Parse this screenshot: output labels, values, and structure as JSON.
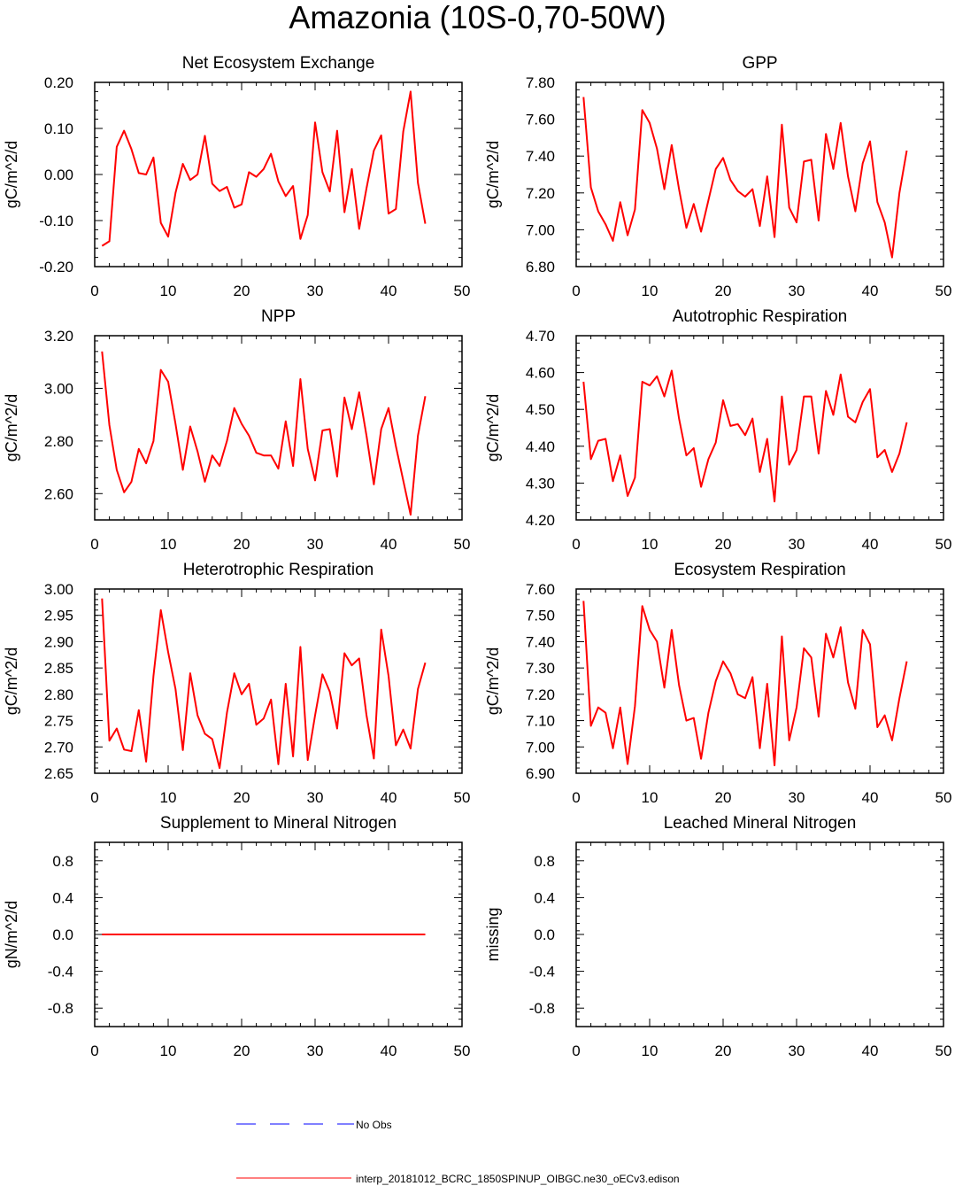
{
  "page_title": "Amazonia (10S-0,70-50W)",
  "colors": {
    "model_line": "#ff0000",
    "obs_line": "#0000ff",
    "axis": "#000000"
  },
  "legend": {
    "obs_label": "No Obs",
    "model_label": "interp_20181012_BCRC_1850SPINUP_OIBGC.ne30_oECv3.edison"
  },
  "chart_data": [
    {
      "type": "line",
      "title": "Net Ecosystem Exchange",
      "ylabel": "gC/m^2/d",
      "xlim": [
        0,
        50
      ],
      "ylim": [
        -0.2,
        0.2
      ],
      "xticks": [
        0,
        10,
        20,
        30,
        40,
        50
      ],
      "yticks": [
        "-0.20",
        "-0.10",
        "0.00",
        "0.10",
        "0.20"
      ],
      "grid": false,
      "series": [
        {
          "x": [
            1,
            2,
            3,
            4,
            5,
            6,
            7,
            8,
            9,
            10,
            11,
            12,
            13,
            14,
            15,
            16,
            17,
            18,
            19,
            20,
            21,
            22,
            23,
            24,
            25,
            26,
            27,
            28,
            29,
            30,
            31,
            32,
            33,
            34,
            35,
            36,
            37,
            38,
            39,
            40,
            41,
            42,
            43,
            44,
            45
          ],
          "values": [
            -0.155,
            -0.145,
            0.06,
            0.095,
            0.055,
            0.003,
            0.0,
            0.037,
            -0.105,
            -0.135,
            -0.04,
            0.023,
            -0.012,
            0.0,
            0.084,
            -0.02,
            -0.036,
            -0.027,
            -0.072,
            -0.065,
            0.005,
            -0.005,
            0.012,
            0.045,
            -0.015,
            -0.047,
            -0.025,
            -0.14,
            -0.088,
            0.113,
            0.005,
            -0.037,
            0.095,
            -0.082,
            0.012,
            -0.118,
            -0.03,
            0.052,
            0.085,
            -0.085,
            -0.075,
            0.093,
            0.18,
            -0.018,
            -0.107
          ]
        }
      ]
    },
    {
      "type": "line",
      "title": "GPP",
      "ylabel": "gC/m^2/d",
      "xlim": [
        0,
        50
      ],
      "ylim": [
        6.8,
        7.8
      ],
      "xticks": [
        0,
        10,
        20,
        30,
        40,
        50
      ],
      "yticks": [
        "6.80",
        "7.00",
        "7.20",
        "7.40",
        "7.60",
        "7.80"
      ],
      "grid": false,
      "series": [
        {
          "x": [
            1,
            2,
            3,
            4,
            5,
            6,
            7,
            8,
            9,
            10,
            11,
            12,
            13,
            14,
            15,
            16,
            17,
            18,
            19,
            20,
            21,
            22,
            23,
            24,
            25,
            26,
            27,
            28,
            29,
            30,
            31,
            32,
            33,
            34,
            35,
            36,
            37,
            38,
            39,
            40,
            41,
            42,
            43,
            44,
            45
          ],
          "values": [
            7.72,
            7.23,
            7.1,
            7.03,
            6.94,
            7.15,
            6.97,
            7.11,
            7.65,
            7.58,
            7.44,
            7.22,
            7.46,
            7.22,
            7.01,
            7.14,
            6.99,
            7.16,
            7.33,
            7.39,
            7.27,
            7.21,
            7.18,
            7.22,
            7.02,
            7.29,
            6.96,
            7.57,
            7.12,
            7.04,
            7.37,
            7.38,
            7.05,
            7.52,
            7.33,
            7.58,
            7.29,
            7.1,
            7.36,
            7.48,
            7.15,
            7.04,
            6.85,
            7.2,
            7.43
          ]
        }
      ]
    },
    {
      "type": "line",
      "title": "NPP",
      "ylabel": "gC/m^2/d",
      "xlim": [
        0,
        50
      ],
      "ylim": [
        2.5,
        3.2
      ],
      "xticks": [
        0,
        10,
        20,
        30,
        40,
        50
      ],
      "yticks": [
        "2.60",
        "2.80",
        "3.00",
        "3.20"
      ],
      "ytick_values": [
        2.6,
        2.8,
        3.0,
        3.2
      ],
      "grid": false,
      "series": [
        {
          "x": [
            1,
            2,
            3,
            4,
            5,
            6,
            7,
            8,
            9,
            10,
            11,
            12,
            13,
            14,
            15,
            16,
            17,
            18,
            19,
            20,
            21,
            22,
            23,
            24,
            25,
            26,
            27,
            28,
            29,
            30,
            31,
            32,
            33,
            34,
            35,
            36,
            37,
            38,
            39,
            40,
            41,
            42,
            43,
            44,
            45
          ],
          "values": [
            3.14,
            2.86,
            2.69,
            2.605,
            2.645,
            2.77,
            2.715,
            2.8,
            3.07,
            3.025,
            2.865,
            2.69,
            2.855,
            2.76,
            2.645,
            2.745,
            2.705,
            2.8,
            2.925,
            2.865,
            2.82,
            2.755,
            2.745,
            2.745,
            2.695,
            2.875,
            2.705,
            3.035,
            2.77,
            2.65,
            2.84,
            2.845,
            2.665,
            2.965,
            2.845,
            2.985,
            2.82,
            2.635,
            2.845,
            2.925,
            2.78,
            2.65,
            2.52,
            2.82,
            2.97
          ]
        }
      ]
    },
    {
      "type": "line",
      "title": "Autotrophic Respiration",
      "ylabel": "gC/m^2/d",
      "xlim": [
        0,
        50
      ],
      "ylim": [
        4.2,
        4.7
      ],
      "xticks": [
        0,
        10,
        20,
        30,
        40,
        50
      ],
      "yticks": [
        "4.20",
        "4.30",
        "4.40",
        "4.50",
        "4.60",
        "4.70"
      ],
      "grid": false,
      "series": [
        {
          "x": [
            1,
            2,
            3,
            4,
            5,
            6,
            7,
            8,
            9,
            10,
            11,
            12,
            13,
            14,
            15,
            16,
            17,
            18,
            19,
            20,
            21,
            22,
            23,
            24,
            25,
            26,
            27,
            28,
            29,
            30,
            31,
            32,
            33,
            34,
            35,
            36,
            37,
            38,
            39,
            40,
            41,
            42,
            43,
            44,
            45
          ],
          "values": [
            4.575,
            4.365,
            4.415,
            4.42,
            4.305,
            4.375,
            4.265,
            4.315,
            4.575,
            4.565,
            4.59,
            4.535,
            4.605,
            4.475,
            4.375,
            4.395,
            4.29,
            4.365,
            4.41,
            4.525,
            4.455,
            4.46,
            4.43,
            4.475,
            4.33,
            4.42,
            4.25,
            4.535,
            4.35,
            4.39,
            4.535,
            4.535,
            4.38,
            4.55,
            4.485,
            4.595,
            4.48,
            4.465,
            4.52,
            4.555,
            4.37,
            4.39,
            4.33,
            4.38,
            4.465
          ]
        }
      ]
    },
    {
      "type": "line",
      "title": "Heterotrophic Respiration",
      "ylabel": "gC/m^2/d",
      "xlim": [
        0,
        50
      ],
      "ylim": [
        2.65,
        3.0
      ],
      "xticks": [
        0,
        10,
        20,
        30,
        40,
        50
      ],
      "yticks": [
        "2.65",
        "2.70",
        "2.75",
        "2.80",
        "2.85",
        "2.90",
        "2.95",
        "3.00"
      ],
      "grid": false,
      "series": [
        {
          "x": [
            1,
            2,
            3,
            4,
            5,
            6,
            7,
            8,
            9,
            10,
            11,
            12,
            13,
            14,
            15,
            16,
            17,
            18,
            19,
            20,
            21,
            22,
            23,
            24,
            25,
            26,
            27,
            28,
            29,
            30,
            31,
            32,
            33,
            34,
            35,
            36,
            37,
            38,
            39,
            40,
            41,
            42,
            43,
            44,
            45
          ],
          "values": [
            2.982,
            2.712,
            2.735,
            2.695,
            2.692,
            2.77,
            2.672,
            2.835,
            2.96,
            2.88,
            2.81,
            2.694,
            2.84,
            2.76,
            2.725,
            2.715,
            2.66,
            2.765,
            2.84,
            2.8,
            2.82,
            2.742,
            2.754,
            2.79,
            2.667,
            2.82,
            2.682,
            2.89,
            2.675,
            2.76,
            2.838,
            2.805,
            2.735,
            2.878,
            2.855,
            2.868,
            2.76,
            2.678,
            2.923,
            2.835,
            2.703,
            2.733,
            2.697,
            2.81,
            2.86
          ]
        }
      ]
    },
    {
      "type": "line",
      "title": "Ecosystem Respiration",
      "ylabel": "gC/m^2/d",
      "xlim": [
        0,
        50
      ],
      "ylim": [
        6.9,
        7.6
      ],
      "xticks": [
        0,
        10,
        20,
        30,
        40,
        50
      ],
      "yticks": [
        "6.90",
        "7.00",
        "7.10",
        "7.20",
        "7.30",
        "7.40",
        "7.50",
        "7.60"
      ],
      "grid": false,
      "series": [
        {
          "x": [
            1,
            2,
            3,
            4,
            5,
            6,
            7,
            8,
            9,
            10,
            11,
            12,
            13,
            14,
            15,
            16,
            17,
            18,
            19,
            20,
            21,
            22,
            23,
            24,
            25,
            26,
            27,
            28,
            29,
            30,
            31,
            32,
            33,
            34,
            35,
            36,
            37,
            38,
            39,
            40,
            41,
            42,
            43,
            44,
            45
          ],
          "values": [
            7.555,
            7.08,
            7.15,
            7.13,
            6.995,
            7.15,
            6.935,
            7.155,
            7.535,
            7.445,
            7.4,
            7.225,
            7.445,
            7.235,
            7.1,
            7.11,
            6.955,
            7.13,
            7.25,
            7.325,
            7.28,
            7.2,
            7.185,
            7.265,
            6.995,
            7.24,
            6.93,
            7.42,
            7.025,
            7.15,
            7.375,
            7.34,
            7.115,
            7.43,
            7.34,
            7.455,
            7.245,
            7.145,
            7.445,
            7.39,
            7.075,
            7.12,
            7.025,
            7.185,
            7.325
          ]
        }
      ]
    },
    {
      "type": "line",
      "title": "Supplement to Mineral Nitrogen",
      "ylabel": "gN/m^2/d",
      "xlim": [
        0,
        50
      ],
      "ylim": [
        -1.0,
        1.0
      ],
      "xticks": [
        0,
        10,
        20,
        30,
        40,
        50
      ],
      "yticks": [
        "-0.8",
        "-0.4",
        "0.0",
        "0.4",
        "0.8"
      ],
      "grid": false,
      "series": [
        {
          "x": [
            1,
            45
          ],
          "values": [
            0.0,
            0.0
          ]
        }
      ]
    },
    {
      "type": "line",
      "title": "Leached Mineral Nitrogen",
      "ylabel": "missing",
      "xlim": [
        0,
        50
      ],
      "ylim": [
        -1.0,
        1.0
      ],
      "xticks": [
        0,
        10,
        20,
        30,
        40,
        50
      ],
      "yticks": [
        "-0.8",
        "-0.4",
        "0.0",
        "0.4",
        "0.8"
      ],
      "grid": false,
      "series": []
    }
  ]
}
